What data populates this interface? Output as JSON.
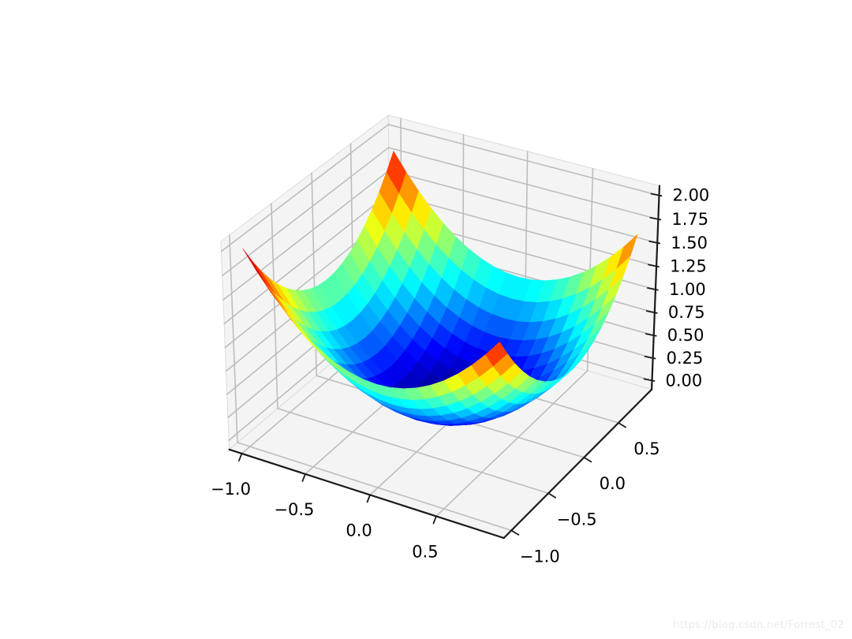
{
  "figure": {
    "background": "#ffffff"
  },
  "watermark": {
    "text": "https://blog.csdn.net/Forrest_02",
    "color": "#eaeaea"
  },
  "chart_data": {
    "type": "surface",
    "title": "",
    "z_formula": "x*x + y*y",
    "surface": {
      "x_start": -1.0,
      "x_step": 0.1,
      "x_count": 20,
      "y_start": -1.0,
      "y_step": 0.1,
      "y_count": 20,
      "color_norm": [
        0,
        2
      ]
    },
    "colormap": "jet",
    "axes": {
      "x": {
        "lim": [
          -1.1,
          1.0
        ],
        "ticks": [
          {
            "v": -1.0,
            "label": "−1.0"
          },
          {
            "v": -0.5,
            "label": "−0.5"
          },
          {
            "v": 0.0,
            "label": "0.0"
          },
          {
            "v": 0.5,
            "label": "0.5"
          }
        ]
      },
      "y": {
        "lim": [
          -1.1,
          1.0
        ],
        "ticks": [
          {
            "v": -1.0,
            "label": "−1.0"
          },
          {
            "v": -0.5,
            "label": "−0.5"
          },
          {
            "v": 0.0,
            "label": "0.0"
          },
          {
            "v": 0.5,
            "label": "0.5"
          }
        ]
      },
      "z": {
        "lim": [
          -0.1,
          2.1
        ],
        "ticks": [
          {
            "v": 0.0,
            "label": "0.00"
          },
          {
            "v": 0.25,
            "label": "0.25"
          },
          {
            "v": 0.5,
            "label": "0.50"
          },
          {
            "v": 0.75,
            "label": "0.75"
          },
          {
            "v": 1.0,
            "label": "1.00"
          },
          {
            "v": 1.25,
            "label": "1.25"
          },
          {
            "v": 1.5,
            "label": "1.50"
          },
          {
            "v": 1.75,
            "label": "1.75"
          },
          {
            "v": 2.0,
            "label": "2.00"
          }
        ]
      }
    },
    "view": {
      "elev": 30,
      "azim": -60,
      "dist": 10,
      "box_aspect": [
        1,
        1,
        0.75
      ]
    },
    "grid": true,
    "colors": {
      "pane": "#f4f4f4",
      "pane_edge": "#dcdcdc",
      "grid": "#bdbdbd",
      "axis_line": "#1a1a1a",
      "tick_label": "#000000"
    }
  }
}
